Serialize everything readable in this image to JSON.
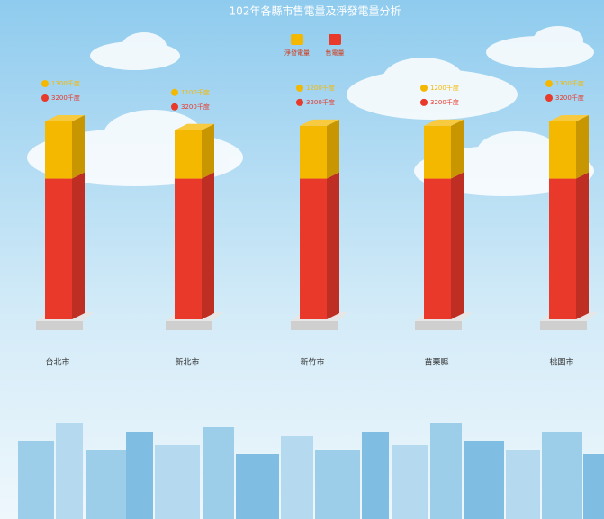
{
  "chart_data": {
    "type": "bar",
    "stacked": true,
    "title": "102年各縣市售電量及淨發電量分析",
    "categories": [
      "台北市",
      "新北市",
      "新竹市",
      "苗栗縣",
      "桃園市"
    ],
    "series": [
      {
        "name": "淨發電量",
        "color": "#f5b800",
        "values": [
          1300,
          1100,
          1200,
          1200,
          1300
        ],
        "value_labels": [
          "1300千度",
          "1100千度",
          "1200千度",
          "1200千度",
          "1300千度"
        ]
      },
      {
        "name": "售電量",
        "color": "#e8392b",
        "values": [
          3200,
          3200,
          3200,
          3200,
          3200
        ],
        "value_labels": [
          "3200千度",
          "3200千度",
          "3200千度",
          "3200千度",
          "3200千度"
        ]
      }
    ],
    "legend": "top"
  }
}
